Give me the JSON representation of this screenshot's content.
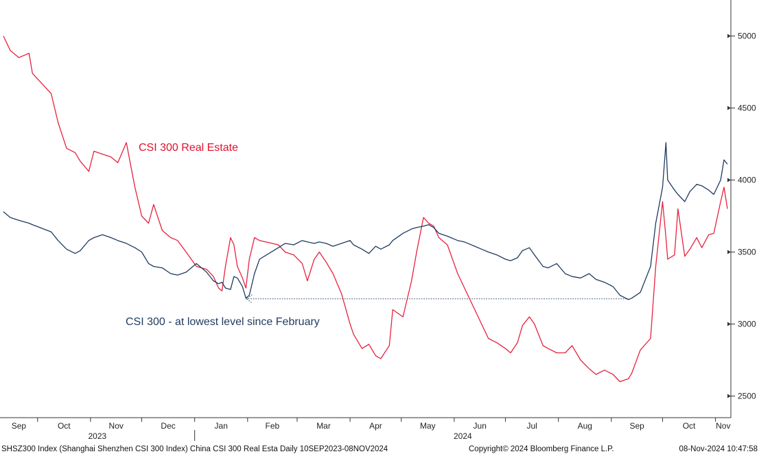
{
  "chart_data": {
    "type": "line",
    "y_axis_position": "right",
    "ylim": [
      2350,
      5250
    ],
    "y_ticks": [
      2500,
      3000,
      3500,
      4000,
      4500,
      5000
    ],
    "x_months": [
      {
        "label": "Sep"
      },
      {
        "label": "Oct"
      },
      {
        "label": "Nov"
      },
      {
        "label": "Dec"
      },
      {
        "label": "Jan"
      },
      {
        "label": "Feb"
      },
      {
        "label": "Mar"
      },
      {
        "label": "Apr"
      },
      {
        "label": "May"
      },
      {
        "label": "Jun"
      },
      {
        "label": "Jul"
      },
      {
        "label": "Aug"
      },
      {
        "label": "Sep"
      },
      {
        "label": "Oct"
      },
      {
        "label": "Nov"
      }
    ],
    "x_years": [
      "2023",
      "2024"
    ],
    "series": [
      {
        "name": "CSI 300 Real Estate",
        "color": "#e8203c",
        "points": [
          [
            "2023-09-11",
            5000
          ],
          [
            "2023-09-15",
            4900
          ],
          [
            "2023-09-20",
            4850
          ],
          [
            "2023-09-26",
            4880
          ],
          [
            "2023-09-28",
            4740
          ],
          [
            "2023-10-09",
            4600
          ],
          [
            "2023-10-13",
            4400
          ],
          [
            "2023-10-18",
            4220
          ],
          [
            "2023-10-23",
            4190
          ],
          [
            "2023-10-26",
            4130
          ],
          [
            "2023-10-31",
            4060
          ],
          [
            "2023-11-03",
            4200
          ],
          [
            "2023-11-08",
            4180
          ],
          [
            "2023-11-13",
            4160
          ],
          [
            "2023-11-17",
            4120
          ],
          [
            "2023-11-22",
            4260
          ],
          [
            "2023-11-27",
            3950
          ],
          [
            "2023-12-01",
            3750
          ],
          [
            "2023-12-05",
            3700
          ],
          [
            "2023-12-08",
            3830
          ],
          [
            "2023-12-13",
            3650
          ],
          [
            "2023-12-18",
            3600
          ],
          [
            "2023-12-22",
            3580
          ],
          [
            "2023-12-27",
            3500
          ],
          [
            "2024-01-02",
            3400
          ],
          [
            "2024-01-08",
            3380
          ],
          [
            "2024-01-12",
            3330
          ],
          [
            "2024-01-15",
            3250
          ],
          [
            "2024-01-17",
            3230
          ],
          [
            "2024-01-19",
            3400
          ],
          [
            "2024-01-22",
            3600
          ],
          [
            "2024-01-24",
            3550
          ],
          [
            "2024-01-26",
            3400
          ],
          [
            "2024-01-29",
            3320
          ],
          [
            "2024-01-31",
            3250
          ],
          [
            "2024-02-02",
            3450
          ],
          [
            "2024-02-05",
            3600
          ],
          [
            "2024-02-08",
            3580
          ],
          [
            "2024-02-19",
            3550
          ],
          [
            "2024-02-23",
            3500
          ],
          [
            "2024-02-28",
            3480
          ],
          [
            "2024-03-04",
            3420
          ],
          [
            "2024-03-07",
            3300
          ],
          [
            "2024-03-11",
            3450
          ],
          [
            "2024-03-14",
            3500
          ],
          [
            "2024-03-18",
            3430
          ],
          [
            "2024-03-22",
            3350
          ],
          [
            "2024-03-27",
            3210
          ],
          [
            "2024-04-01",
            3000
          ],
          [
            "2024-04-03",
            2930
          ],
          [
            "2024-04-08",
            2830
          ],
          [
            "2024-04-12",
            2860
          ],
          [
            "2024-04-16",
            2780
          ],
          [
            "2024-04-19",
            2760
          ],
          [
            "2024-04-24",
            2850
          ],
          [
            "2024-04-26",
            3100
          ],
          [
            "2024-05-02",
            3050
          ],
          [
            "2024-05-07",
            3300
          ],
          [
            "2024-05-10",
            3500
          ],
          [
            "2024-05-14",
            3740
          ],
          [
            "2024-05-17",
            3700
          ],
          [
            "2024-05-20",
            3680
          ],
          [
            "2024-05-23",
            3600
          ],
          [
            "2024-05-28",
            3550
          ],
          [
            "2024-06-03",
            3350
          ],
          [
            "2024-06-07",
            3250
          ],
          [
            "2024-06-13",
            3100
          ],
          [
            "2024-06-17",
            3000
          ],
          [
            "2024-06-21",
            2900
          ],
          [
            "2024-06-26",
            2870
          ],
          [
            "2024-07-01",
            2830
          ],
          [
            "2024-07-04",
            2800
          ],
          [
            "2024-07-08",
            2870
          ],
          [
            "2024-07-11",
            2990
          ],
          [
            "2024-07-15",
            3050
          ],
          [
            "2024-07-18",
            3000
          ],
          [
            "2024-07-23",
            2850
          ],
          [
            "2024-07-26",
            2830
          ],
          [
            "2024-07-31",
            2800
          ],
          [
            "2024-08-05",
            2800
          ],
          [
            "2024-08-09",
            2850
          ],
          [
            "2024-08-14",
            2750
          ],
          [
            "2024-08-19",
            2690
          ],
          [
            "2024-08-23",
            2650
          ],
          [
            "2024-08-28",
            2680
          ],
          [
            "2024-09-02",
            2650
          ],
          [
            "2024-09-06",
            2600
          ],
          [
            "2024-09-11",
            2620
          ],
          [
            "2024-09-13",
            2660
          ],
          [
            "2024-09-18",
            2820
          ],
          [
            "2024-09-24",
            2900
          ],
          [
            "2024-09-27",
            3400
          ],
          [
            "2024-10-01",
            3850
          ],
          [
            "2024-10-03",
            3600
          ],
          [
            "2024-10-04",
            3450
          ],
          [
            "2024-10-08",
            3480
          ],
          [
            "2024-10-10",
            3800
          ],
          [
            "2024-10-14",
            3470
          ],
          [
            "2024-10-17",
            3520
          ],
          [
            "2024-10-21",
            3600
          ],
          [
            "2024-10-24",
            3530
          ],
          [
            "2024-10-28",
            3620
          ],
          [
            "2024-10-31",
            3630
          ],
          [
            "2024-11-04",
            3850
          ],
          [
            "2024-11-06",
            3950
          ],
          [
            "2024-11-08",
            3800
          ]
        ]
      },
      {
        "name": "CSI 300",
        "color": "#1e3a5f",
        "points": [
          [
            "2023-09-11",
            3780
          ],
          [
            "2023-09-15",
            3740
          ],
          [
            "2023-09-20",
            3720
          ],
          [
            "2023-09-26",
            3700
          ],
          [
            "2023-09-28",
            3690
          ],
          [
            "2023-10-09",
            3640
          ],
          [
            "2023-10-13",
            3580
          ],
          [
            "2023-10-18",
            3520
          ],
          [
            "2023-10-23",
            3490
          ],
          [
            "2023-10-26",
            3510
          ],
          [
            "2023-10-31",
            3580
          ],
          [
            "2023-11-03",
            3600
          ],
          [
            "2023-11-08",
            3620
          ],
          [
            "2023-11-13",
            3600
          ],
          [
            "2023-11-17",
            3580
          ],
          [
            "2023-11-22",
            3560
          ],
          [
            "2023-11-27",
            3530
          ],
          [
            "2023-12-01",
            3500
          ],
          [
            "2023-12-05",
            3420
          ],
          [
            "2023-12-08",
            3400
          ],
          [
            "2023-12-13",
            3390
          ],
          [
            "2023-12-18",
            3350
          ],
          [
            "2023-12-22",
            3340
          ],
          [
            "2023-12-27",
            3360
          ],
          [
            "2024-01-02",
            3420
          ],
          [
            "2024-01-08",
            3360
          ],
          [
            "2024-01-12",
            3300
          ],
          [
            "2024-01-15",
            3280
          ],
          [
            "2024-01-17",
            3290
          ],
          [
            "2024-01-19",
            3250
          ],
          [
            "2024-01-22",
            3240
          ],
          [
            "2024-01-24",
            3330
          ],
          [
            "2024-01-26",
            3320
          ],
          [
            "2024-01-29",
            3260
          ],
          [
            "2024-01-31",
            3180
          ],
          [
            "2024-02-02",
            3200
          ],
          [
            "2024-02-05",
            3350
          ],
          [
            "2024-02-08",
            3450
          ],
          [
            "2024-02-19",
            3530
          ],
          [
            "2024-02-23",
            3560
          ],
          [
            "2024-02-28",
            3550
          ],
          [
            "2024-03-04",
            3580
          ],
          [
            "2024-03-07",
            3570
          ],
          [
            "2024-03-11",
            3560
          ],
          [
            "2024-03-14",
            3570
          ],
          [
            "2024-03-18",
            3560
          ],
          [
            "2024-03-22",
            3540
          ],
          [
            "2024-03-27",
            3560
          ],
          [
            "2024-04-01",
            3580
          ],
          [
            "2024-04-03",
            3550
          ],
          [
            "2024-04-08",
            3520
          ],
          [
            "2024-04-12",
            3490
          ],
          [
            "2024-04-16",
            3540
          ],
          [
            "2024-04-19",
            3520
          ],
          [
            "2024-04-24",
            3550
          ],
          [
            "2024-04-26",
            3580
          ],
          [
            "2024-05-02",
            3630
          ],
          [
            "2024-05-07",
            3660
          ],
          [
            "2024-05-10",
            3670
          ],
          [
            "2024-05-14",
            3680
          ],
          [
            "2024-05-17",
            3690
          ],
          [
            "2024-05-20",
            3670
          ],
          [
            "2024-05-23",
            3630
          ],
          [
            "2024-05-28",
            3610
          ],
          [
            "2024-06-03",
            3580
          ],
          [
            "2024-06-07",
            3570
          ],
          [
            "2024-06-13",
            3540
          ],
          [
            "2024-06-17",
            3520
          ],
          [
            "2024-06-21",
            3500
          ],
          [
            "2024-06-26",
            3480
          ],
          [
            "2024-07-01",
            3450
          ],
          [
            "2024-07-04",
            3440
          ],
          [
            "2024-07-08",
            3460
          ],
          [
            "2024-07-11",
            3510
          ],
          [
            "2024-07-15",
            3530
          ],
          [
            "2024-07-18",
            3480
          ],
          [
            "2024-07-23",
            3400
          ],
          [
            "2024-07-26",
            3390
          ],
          [
            "2024-07-31",
            3420
          ],
          [
            "2024-08-05",
            3350
          ],
          [
            "2024-08-09",
            3330
          ],
          [
            "2024-08-14",
            3320
          ],
          [
            "2024-08-19",
            3350
          ],
          [
            "2024-08-23",
            3310
          ],
          [
            "2024-08-28",
            3290
          ],
          [
            "2024-09-02",
            3260
          ],
          [
            "2024-09-06",
            3200
          ],
          [
            "2024-09-11",
            3170
          ],
          [
            "2024-09-13",
            3180
          ],
          [
            "2024-09-18",
            3220
          ],
          [
            "2024-09-24",
            3400
          ],
          [
            "2024-09-27",
            3700
          ],
          [
            "2024-10-01",
            3950
          ],
          [
            "2024-10-03",
            4260
          ],
          [
            "2024-10-04",
            4000
          ],
          [
            "2024-10-08",
            3930
          ],
          [
            "2024-10-10",
            3900
          ],
          [
            "2024-10-14",
            3850
          ],
          [
            "2024-10-17",
            3920
          ],
          [
            "2024-10-21",
            3970
          ],
          [
            "2024-10-24",
            3960
          ],
          [
            "2024-10-28",
            3930
          ],
          [
            "2024-10-31",
            3900
          ],
          [
            "2024-11-04",
            4000
          ],
          [
            "2024-11-06",
            4140
          ],
          [
            "2024-11-08",
            4110
          ]
        ]
      }
    ],
    "annotations": [
      {
        "text": "CSI 300 Real Estate",
        "series": "CSI 300 Real Estate"
      },
      {
        "text": "CSI 300 - at lowest level since February",
        "series": "CSI 300"
      }
    ],
    "reference_line": {
      "from": "2024-01-31",
      "to": "2024-09-11",
      "value": 3175,
      "style": "dotted"
    }
  },
  "footer": {
    "left": "SHSZ300 Index (Shanghai Shenzhen CSI 300 Index) China CSI 300 Real Esta  Daily 10SEP2023-08NOV2024",
    "center": "Copyright© 2024 Bloomberg Finance L.P.",
    "right": "08-Nov-2024 10:47:58"
  }
}
